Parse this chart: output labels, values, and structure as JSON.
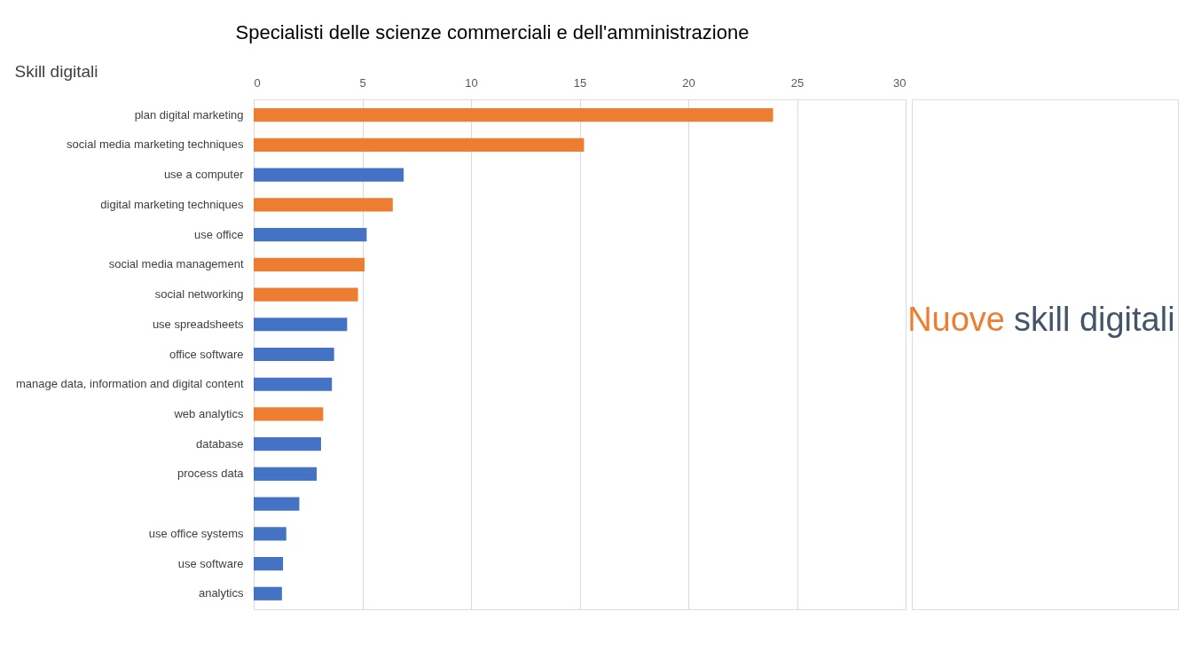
{
  "chart_data": {
    "type": "bar",
    "orientation": "horizontal",
    "title": "Specialisti delle scienze commerciali e dell'amministrazione",
    "ylabel": "Skill digitali",
    "categories": [
      "plan digital marketing",
      "social media marketing techniques",
      "use a computer",
      "digital marketing techniques",
      "use office",
      "social media management",
      "social networking",
      "use spreadsheets",
      "office software",
      "manage data, information and digital content",
      "web analytics",
      "database",
      "process data",
      null,
      "use office systems",
      "use software",
      "analytics"
    ],
    "values": [
      23.9,
      15.2,
      6.9,
      6.4,
      5.2,
      5.1,
      4.8,
      4.3,
      3.7,
      3.6,
      3.2,
      3.1,
      2.9,
      2.1,
      1.5,
      1.35,
      1.3
    ],
    "colors": [
      "#ed7d31",
      "#ed7d31",
      "#4472c4",
      "#ed7d31",
      "#4472c4",
      "#ed7d31",
      "#ed7d31",
      "#4472c4",
      "#4472c4",
      "#4472c4",
      "#ed7d31",
      "#4472c4",
      "#4472c4",
      "#4472c4",
      "#4472c4",
      "#4472c4",
      "#4472c4"
    ],
    "xlim": [
      0,
      30
    ],
    "xticks": [
      0,
      5,
      10,
      15,
      20,
      25,
      30
    ],
    "grid": "x",
    "annotations": [
      "Nuove skill digitali"
    ]
  }
}
